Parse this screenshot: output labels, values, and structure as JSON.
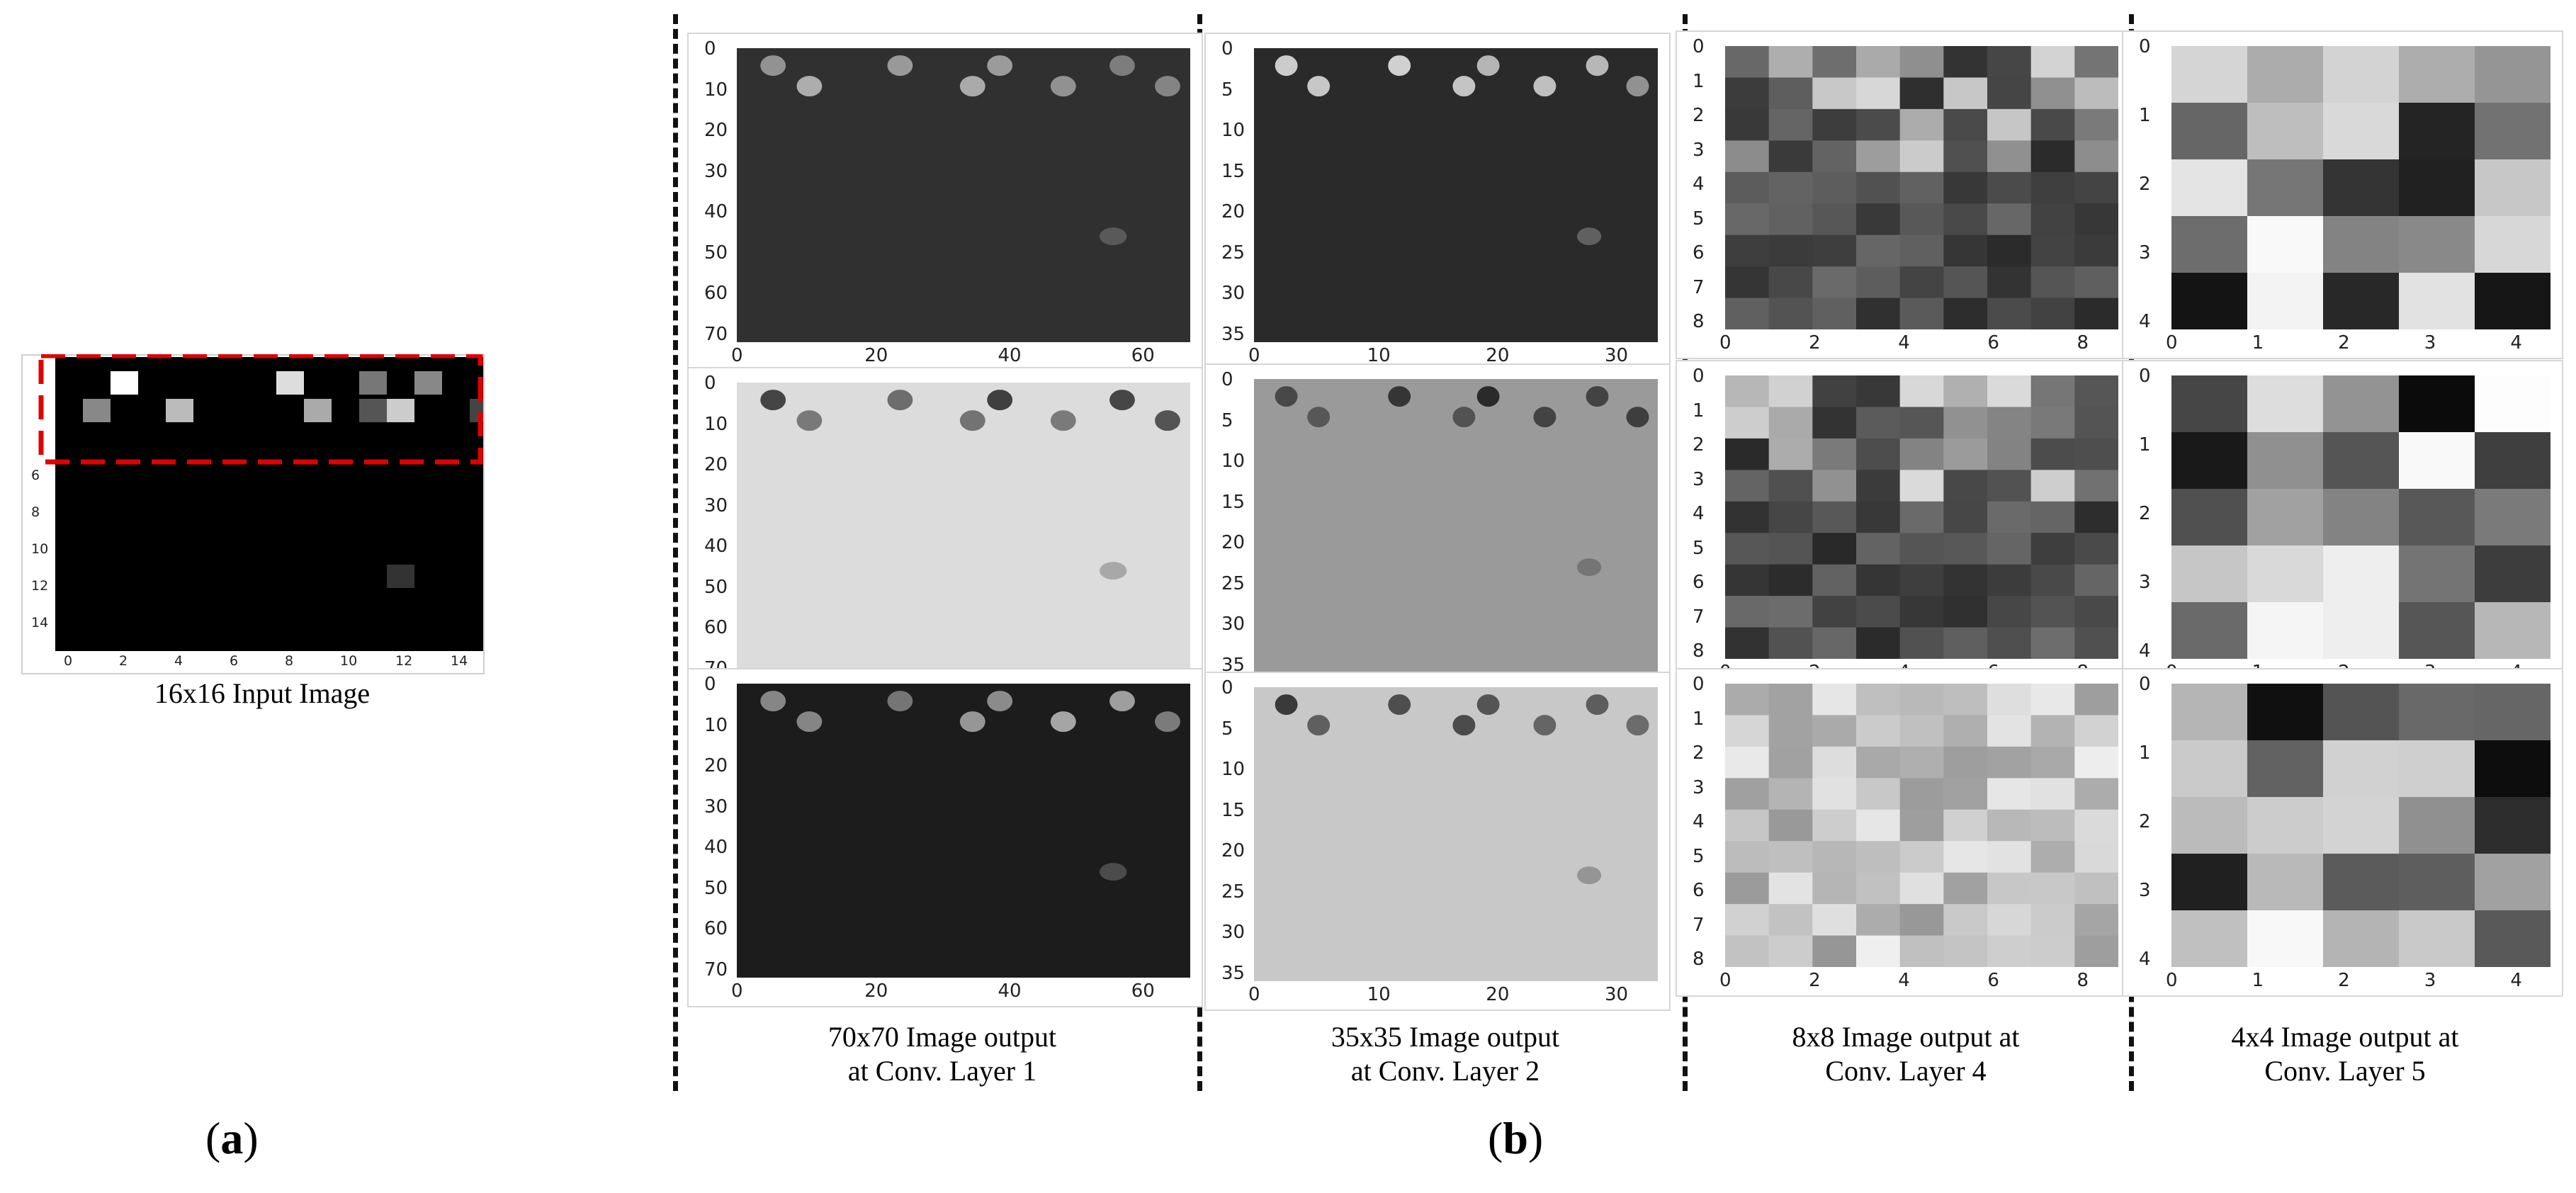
{
  "panel_a": {
    "caption": "16x16 Input Image",
    "y_ticks": [
      "6",
      "8",
      "10",
      "12",
      "14"
    ],
    "x_ticks": [
      "0",
      "2",
      "4",
      "6",
      "8",
      "10",
      "12",
      "14"
    ],
    "label": "a",
    "highlight_color": "#e00000"
  },
  "panel_b": {
    "label": "b",
    "columns": [
      {
        "caption_line1": "70x70 Image output",
        "caption_line2": "at Conv. Layer 1",
        "x_ticks": [
          "0",
          "20",
          "40",
          "60"
        ],
        "y_ticks": [
          "0",
          "10",
          "20",
          "30",
          "40",
          "50",
          "60",
          "70"
        ]
      },
      {
        "caption_line1": "35x35 Image output",
        "caption_line2": "at Conv. Layer 2",
        "x_ticks": [
          "0",
          "10",
          "20",
          "30"
        ],
        "y_ticks": [
          "0",
          "5",
          "10",
          "15",
          "20",
          "25",
          "30",
          "35"
        ]
      },
      {
        "caption_line1": "8x8 Image output at",
        "caption_line2": "Conv. Layer 4",
        "x_ticks": [
          "0",
          "2",
          "4",
          "6",
          "8"
        ],
        "y_ticks": [
          "0",
          "1",
          "2",
          "3",
          "4",
          "5",
          "6",
          "7",
          "8"
        ]
      },
      {
        "caption_line1": "4x4 Image output at",
        "caption_line2": "Conv. Layer 5",
        "x_ticks": [
          "0",
          "1",
          "2",
          "3",
          "4"
        ],
        "y_ticks": [
          "0",
          "1",
          "2",
          "3",
          "4"
        ]
      }
    ]
  }
}
